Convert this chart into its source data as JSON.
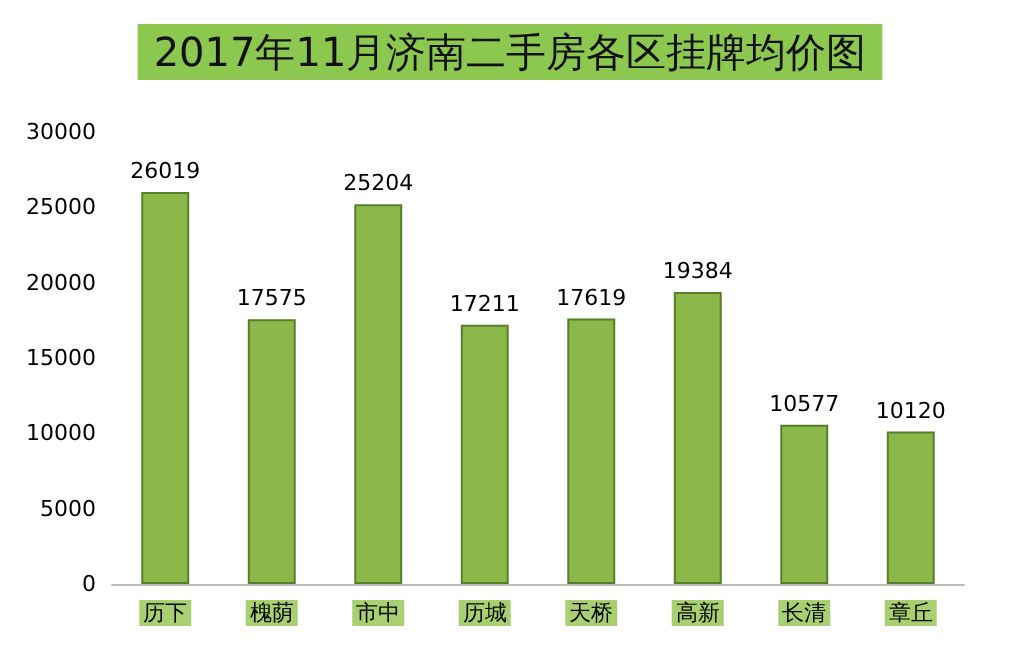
{
  "chart_data": {
    "type": "bar",
    "title": "2017年11月济南二手房各区挂牌均价图",
    "categories": [
      "历下",
      "槐荫",
      "市中",
      "历城",
      "天桥",
      "高新",
      "长清",
      "章丘"
    ],
    "values": [
      26019,
      17575,
      25204,
      17211,
      17619,
      19384,
      10577,
      10120
    ],
    "color": "#8cb84a",
    "ylim": [
      0,
      30000
    ],
    "yticks": [
      0,
      5000,
      10000,
      15000,
      20000,
      25000,
      30000
    ],
    "grid": false,
    "data_labels": true
  }
}
